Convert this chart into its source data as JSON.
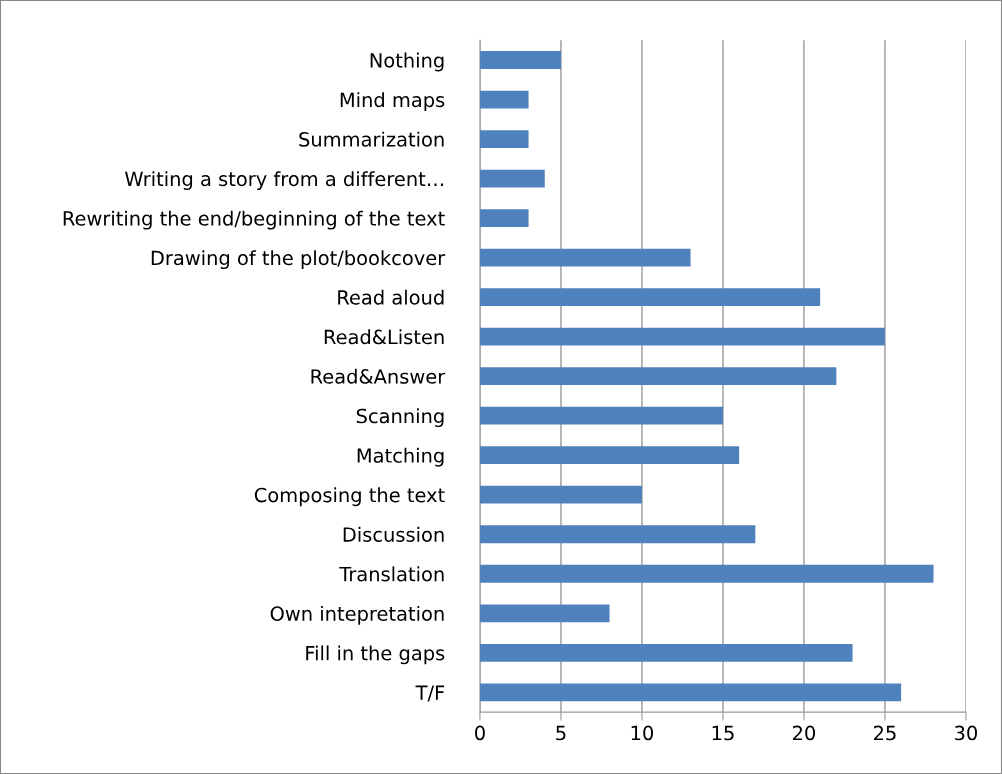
{
  "chart_data": {
    "type": "bar",
    "orientation": "horizontal",
    "color": "#4f81bd",
    "categories": [
      "Nothing",
      "Mind maps",
      "Summarization",
      "Writing a story from a different…",
      "Rewriting the end/beginning of the text",
      "Drawing of the plot/bookcover",
      "Read aloud",
      "Read&Listen",
      "Read&Answer",
      "Scanning",
      "Matching",
      "Composing the text",
      "Discussion",
      "Translation",
      "Own intepretation",
      "Fill in the gaps",
      "T/F"
    ],
    "values": [
      5,
      3,
      3,
      4,
      3,
      13,
      21,
      25,
      22,
      15,
      16,
      10,
      17,
      28,
      8,
      23,
      26
    ],
    "xlim": [
      0,
      30
    ],
    "xticks": [
      0,
      5,
      10,
      15,
      20,
      25,
      30
    ],
    "grid": "x",
    "legend": false
  }
}
